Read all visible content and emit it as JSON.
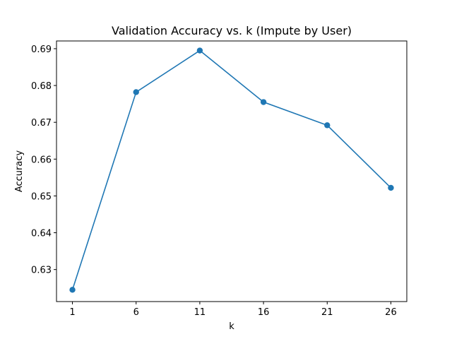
{
  "chart_data": {
    "type": "line",
    "title": "Validation Accuracy vs. k (Impute by User)",
    "xlabel": "k",
    "ylabel": "Accuracy",
    "x": [
      1,
      6,
      11,
      16,
      21,
      26
    ],
    "series": [
      {
        "values": [
          0.6245,
          0.6782,
          0.6895,
          0.6755,
          0.6692,
          0.6522
        ],
        "color": "#1f77b4",
        "marker": "circle"
      }
    ],
    "xticks": [
      1,
      6,
      11,
      16,
      21,
      26
    ],
    "xtick_labels": [
      "1",
      "6",
      "11",
      "16",
      "21",
      "26"
    ],
    "yticks": [
      0.63,
      0.64,
      0.65,
      0.66,
      0.67,
      0.68,
      0.69
    ],
    "ytick_labels": [
      "0.63",
      "0.64",
      "0.65",
      "0.66",
      "0.67",
      "0.68",
      "0.69"
    ],
    "xlim": [
      -0.25,
      27.25
    ],
    "ylim": [
      0.6213,
      0.6921
    ],
    "grid": false,
    "legend": "none"
  }
}
